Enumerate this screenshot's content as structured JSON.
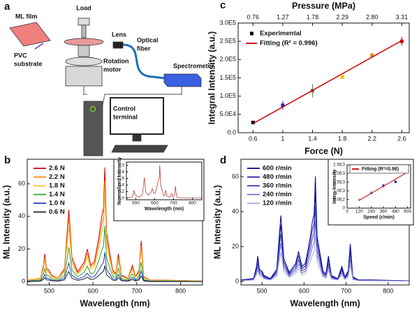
{
  "diagram": {
    "panel": "a",
    "ml_film": [
      "ML film"
    ],
    "pvc": [
      "PVC",
      "substrate"
    ],
    "load": [
      "Load"
    ],
    "lens": [
      "Lens"
    ],
    "fiber": [
      "Optical",
      "fiber"
    ],
    "motor": [
      "Rotation",
      "motor"
    ],
    "spectrometer": [
      "Spectrometer"
    ],
    "terminal": [
      "Control",
      "terminal"
    ]
  },
  "chart_data": [
    {
      "panel": "c",
      "type": "scatter",
      "x2_label": "Pressure (MPa)",
      "x_label": "Force (N)",
      "y_label": "Integral Intensity (a.u.)",
      "xlim": [
        0.4,
        2.7
      ],
      "xticks": [
        0.6,
        1.0,
        1.4,
        1.8,
        2.2,
        2.6
      ],
      "x2lim": [
        0.505,
        3.4375
      ],
      "x2ticks": [
        0.76,
        1.27,
        1.78,
        2.29,
        {
          "value": 2.8,
          "label": "2.80"
        },
        3.31
      ],
      "ylim": [
        0,
        300000
      ],
      "yticks": [
        {
          "value": 0,
          "label": "0.0"
        },
        {
          "value": 50000,
          "label": "5.0E4"
        },
        {
          "value": 100000,
          "label": "1.0E5"
        },
        {
          "value": 150000,
          "label": "1.5E5"
        },
        {
          "value": 200000,
          "label": "2.0E5"
        },
        {
          "value": 250000,
          "label": "2.5E5"
        },
        {
          "value": 300000,
          "label": "3.0E5"
        }
      ],
      "legend": "upper left",
      "series": [
        {
          "name": "Experimental",
          "color": "#000000",
          "point_colors": [
            "#000000",
            "#2222cc",
            "#5a7a5a",
            "#f2c200",
            "#f08c00",
            "#cc0000"
          ],
          "x": [
            0.6,
            1.0,
            1.4,
            1.8,
            2.2,
            2.6
          ],
          "values": [
            28000,
            75000,
            115000,
            152000,
            212000,
            250000
          ],
          "errors": [
            2000,
            12000,
            18000,
            5000,
            6000,
            12000
          ]
        },
        {
          "name": "Fitting (R² = 0.996)",
          "color": "#cc0000",
          "mode": "line",
          "x": [
            0.6,
            2.6
          ],
          "values": [
            25000,
            252000
          ]
        }
      ]
    },
    {
      "panel": "b",
      "type": "line",
      "x_label": "Wavelength (nm)",
      "y_label": "ML Intensity (a.u.)",
      "xlim": [
        450,
        850
      ],
      "xticks": [
        500,
        600,
        700,
        800
      ],
      "ylim": [
        -2,
        75
      ],
      "yticks": [
        0,
        20,
        40,
        60
      ],
      "legend": "upper left",
      "x": [
        450,
        480,
        487,
        490,
        494,
        500,
        505,
        520,
        535,
        545,
        552,
        565,
        580,
        587,
        595,
        603,
        610,
        615,
        620,
        624,
        627,
        631,
        637,
        645,
        652,
        658,
        665,
        680,
        690,
        697,
        705,
        710,
        716,
        730,
        760,
        850
      ],
      "series": [
        {
          "name": "2.6 N",
          "color": "#cc0000",
          "values": [
            1,
            2,
            10,
            17,
            8,
            7,
            4,
            2,
            8,
            44,
            15,
            6,
            12,
            20,
            10,
            12,
            22,
            30,
            40,
            45,
            70,
            30,
            20,
            7,
            5,
            17,
            4,
            2,
            10,
            3,
            7,
            25,
            3,
            1,
            1,
            0.5
          ]
        },
        {
          "name": "2.2 N",
          "color": "#ff8c00",
          "values": [
            1,
            2,
            9,
            15,
            7,
            6,
            3.5,
            2,
            7,
            39,
            13,
            5,
            10.5,
            17.6,
            9,
            10.5,
            19,
            26,
            35,
            40,
            62,
            26,
            17.6,
            6,
            4.4,
            15,
            3.5,
            1.8,
            8.8,
            2.6,
            6,
            22,
            2.6,
            0.9,
            0.9,
            0.4
          ]
        },
        {
          "name": "1.8 N",
          "color": "#f5c542",
          "values": [
            0.8,
            1.5,
            7.5,
            12.8,
            6,
            5.3,
            3,
            1.5,
            6,
            33,
            11,
            4.5,
            9,
            15,
            7.5,
            9,
            16.5,
            22.5,
            30,
            34,
            52,
            22.5,
            15,
            5.3,
            3.8,
            12.8,
            3,
            1.5,
            7.5,
            2.3,
            5.3,
            19,
            2.3,
            0.8,
            0.8,
            0.4
          ]
        },
        {
          "name": "1.4 N",
          "color": "#2ca02c",
          "values": [
            0.5,
            1,
            4.8,
            8.2,
            3.8,
            3.4,
            1.9,
            1,
            3.8,
            21,
            7.2,
            2.9,
            5.8,
            9.6,
            4.8,
            5.8,
            10.6,
            14.4,
            19.2,
            21.6,
            34,
            14.4,
            9.6,
            3.4,
            2.4,
            8.2,
            1.9,
            1,
            4.8,
            1.4,
            3.4,
            12,
            1.4,
            0.5,
            0.5,
            0.2
          ]
        },
        {
          "name": "1.0 N",
          "color": "#1f3fbf",
          "values": [
            0.3,
            0.5,
            2.6,
            4.4,
            2.1,
            1.8,
            1,
            0.5,
            2.1,
            11.4,
            3.9,
            1.6,
            3.1,
            5.2,
            2.6,
            3.1,
            5.7,
            7.8,
            10.4,
            11.7,
            18,
            7.8,
            5.2,
            1.8,
            1.3,
            4.4,
            1,
            0.5,
            2.6,
            0.8,
            1.8,
            6.5,
            0.8,
            0.3,
            0.3,
            0.1
          ]
        },
        {
          "name": "0.6 N",
          "color": "#222222",
          "values": [
            0.1,
            0.3,
            1.4,
            2.4,
            1.1,
            1,
            0.6,
            0.3,
            1.1,
            6.2,
            2.1,
            0.8,
            1.7,
            2.8,
            1.4,
            1.7,
            3.1,
            4.2,
            5.6,
            6.3,
            9.8,
            4.2,
            2.8,
            1,
            0.7,
            2.4,
            0.6,
            0.3,
            1.4,
            0.4,
            1,
            3.5,
            0.4,
            0.1,
            0.1,
            0.1
          ]
        }
      ]
    },
    {
      "type": "line",
      "x_label": "Wavelength (nm)",
      "y_label": "Normalized Intensity",
      "xlim": [
        450,
        850
      ],
      "xticks": [
        500,
        600,
        700,
        800
      ],
      "ylim": [
        -0.05,
        1.1
      ],
      "yticks": [
        {
          "value": 0,
          "label": "0.0"
        },
        0.2,
        0.4,
        0.6,
        0.8,
        {
          "value": 1,
          "label": "1.0"
        }
      ],
      "x": [
        450,
        480,
        487,
        490,
        494,
        500,
        505,
        520,
        535,
        545,
        552,
        565,
        580,
        587,
        595,
        603,
        610,
        615,
        620,
        624,
        627,
        631,
        637,
        645,
        652,
        658,
        665,
        680,
        690,
        697,
        705,
        710,
        716,
        730,
        760,
        850
      ],
      "series": [
        {
          "color": "#b22222",
          "values": [
            0.01,
            0.03,
            0.14,
            0.24,
            0.11,
            0.1,
            0.06,
            0.03,
            0.11,
            0.63,
            0.21,
            0.09,
            0.17,
            0.29,
            0.14,
            0.17,
            0.31,
            0.43,
            0.57,
            0.64,
            1,
            0.43,
            0.29,
            0.1,
            0.07,
            0.24,
            0.06,
            0.03,
            0.14,
            0.04,
            0.1,
            0.36,
            0.04,
            0.01,
            0.01,
            0.01
          ]
        }
      ]
    },
    {
      "panel": "d",
      "type": "line",
      "x_label": "Wavelength (nm)",
      "y_label": "ML Intensity (a.u.)",
      "xlim": [
        450,
        850
      ],
      "xticks": [
        500,
        600,
        700,
        800
      ],
      "ylim": [
        -2,
        70
      ],
      "yticks": [
        0,
        20,
        40,
        60
      ],
      "legend": "upper left",
      "x": [
        450,
        480,
        487,
        490,
        494,
        500,
        505,
        520,
        535,
        545,
        552,
        565,
        580,
        587,
        595,
        603,
        610,
        615,
        620,
        624,
        627,
        631,
        637,
        645,
        652,
        658,
        665,
        680,
        690,
        697,
        705,
        710,
        716,
        730,
        760,
        850
      ],
      "series": [
        {
          "name": "600 r/min",
          "color": "#00008b",
          "values": [
            0.9,
            1.7,
            8.6,
            14.6,
            6.9,
            6,
            3.4,
            1.7,
            6.9,
            37.8,
            12.9,
            5.2,
            10.3,
            17.2,
            8.6,
            10.3,
            18.9,
            25.8,
            34.4,
            38.7,
            60.2,
            25.8,
            17.2,
            6,
            4.3,
            14.6,
            3.4,
            1.7,
            8.6,
            2.6,
            6,
            21.5,
            2.6,
            0.9,
            0.9,
            0.4
          ]
        },
        {
          "name": "480 r/min",
          "color": "#1a1aa6",
          "values": [
            0.7,
            1.5,
            7.4,
            12.6,
            5.9,
            5.2,
            3,
            1.5,
            5.9,
            32.6,
            11.1,
            4.4,
            8.9,
            14.8,
            7.4,
            8.9,
            16.3,
            22.2,
            29.6,
            33.3,
            51.8,
            22.2,
            14.8,
            5.2,
            3.7,
            12.6,
            3,
            1.5,
            7.4,
            2.2,
            5.2,
            18.5,
            2.2,
            0.7,
            0.7,
            0.4
          ]
        },
        {
          "name": "360 r/min",
          "color": "#3c3cc0",
          "values": [
            0.6,
            1.2,
            6.2,
            10.5,
            5,
            4.3,
            2.5,
            1.2,
            5,
            27.3,
            9.3,
            3.7,
            7.4,
            12.4,
            6.2,
            7.4,
            13.6,
            18.6,
            24.8,
            27.9,
            43.4,
            18.6,
            12.4,
            4.3,
            3.1,
            10.5,
            2.5,
            1.2,
            6.2,
            1.9,
            4.3,
            15.5,
            1.9,
            0.6,
            0.6,
            0.3
          ]
        },
        {
          "name": "240 r/min",
          "color": "#7070d0",
          "values": [
            0.5,
            1,
            5,
            8.5,
            4,
            3.5,
            2,
            1,
            4,
            22,
            7.5,
            3,
            6,
            10,
            5,
            6,
            11,
            15,
            20,
            22.5,
            35,
            15,
            10,
            3.5,
            2.5,
            8.5,
            2,
            1,
            5,
            1.5,
            3.5,
            12.5,
            1.5,
            0.5,
            0.5,
            0.3
          ]
        },
        {
          "name": "120 r/min",
          "color": "#a8a8e0",
          "values": [
            0.4,
            0.8,
            3.8,
            6.5,
            3,
            2.7,
            1.5,
            0.8,
            3,
            16.7,
            5.7,
            2.3,
            4.6,
            7.6,
            3.8,
            4.6,
            8.4,
            11.4,
            15.2,
            17.1,
            26.6,
            11.4,
            7.6,
            2.7,
            1.9,
            6.5,
            1.5,
            0.8,
            3.8,
            1.1,
            2.7,
            9.5,
            1.1,
            0.4,
            0.4,
            0.2
          ]
        }
      ]
    },
    {
      "type": "scatter",
      "x_label": "Speed (r/min)",
      "y_label": "Integ. Intensity",
      "xlim": [
        0,
        630
      ],
      "xticks": [
        0,
        120,
        240,
        360,
        480,
        600
      ],
      "ylim": [
        0,
        2500
      ],
      "yticks": [
        0,
        {
          "value": 500,
          "label": "5.0E2"
        },
        {
          "value": 1000,
          "label": "1.0E3"
        },
        {
          "value": 1500,
          "label": "1.5E3"
        },
        {
          "value": 2000,
          "label": "2.0E3"
        },
        {
          "value": 2500,
          "label": "2.5E3"
        }
      ],
      "legend": "upper left",
      "series": [
        {
          "color": "#1a1aa6",
          "point_colors": [
            "#a8a8e0",
            "#7070d0",
            "#3c3cc0",
            "#1a1aa6",
            "#00008b"
          ],
          "x": [
            120,
            240,
            360,
            480,
            600
          ],
          "values": [
            480,
            880,
            1300,
            1520,
            2150
          ],
          "errors": [
            60,
            80,
            90,
            70,
            120
          ]
        },
        {
          "name": "Fitting (R²=0.98)",
          "color": "#cc0000",
          "mode": "line",
          "x": [
            120,
            600
          ],
          "values": [
            450,
            2080
          ]
        }
      ]
    }
  ]
}
